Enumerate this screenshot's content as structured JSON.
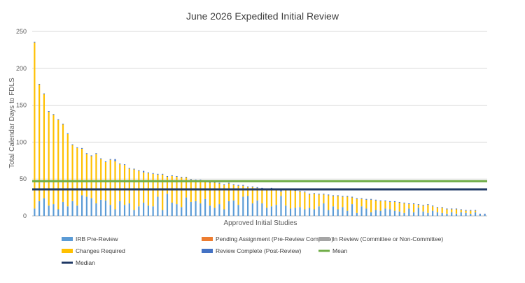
{
  "chart_data": {
    "type": "bar",
    "stacked": true,
    "title": "June 2026 Expedited Initial Review",
    "xlabel": "Approved Initial Studies",
    "ylabel": "Total Calendar Days to FDLS",
    "ylim": [
      0,
      250
    ],
    "yticks": [
      0,
      50,
      100,
      150,
      200,
      250
    ],
    "grid": true,
    "legend_position": "bottom",
    "colors": {
      "irb_pre_review": "#5B9BD5",
      "pending_assignment": "#ED7D31",
      "in_review": "#A5A5A5",
      "changes_required": "#FFC000",
      "review_complete": "#4472C4",
      "mean": "#70AD47",
      "median": "#1F3864"
    },
    "series": [
      {
        "name": "IRB Pre-Review",
        "key": "irb_pre_review",
        "values": [
          10,
          20,
          24,
          14,
          16,
          9,
          19,
          13,
          20,
          14,
          28,
          26,
          24,
          17,
          22,
          21,
          15,
          9,
          20,
          15,
          17,
          8,
          13,
          18,
          14,
          13,
          26,
          8,
          30,
          18,
          16,
          12,
          25,
          19,
          20,
          17,
          23,
          14,
          11,
          16,
          9,
          20,
          21,
          15,
          26,
          27,
          17,
          21,
          17,
          11,
          13,
          15,
          27,
          14,
          10,
          11,
          12,
          9,
          11,
          9,
          13,
          17,
          8,
          13,
          9,
          12,
          7,
          16,
          4,
          13,
          10,
          5,
          8,
          7,
          10,
          9,
          7,
          6,
          4,
          10,
          5,
          11,
          6,
          4,
          7,
          5,
          4,
          3,
          5,
          3,
          5,
          4,
          3,
          5,
          2,
          2
        ]
      },
      {
        "name": "Pending Assignment (Pre-Review Complete)",
        "key": "pending_assignment",
        "values": [
          0,
          0,
          0,
          0,
          0,
          0,
          0,
          0,
          0,
          0,
          0,
          0,
          0,
          0,
          0,
          0,
          0,
          0,
          0,
          0,
          0,
          0,
          0,
          0,
          0,
          0,
          0,
          0,
          0,
          0,
          0,
          0,
          0,
          0,
          0,
          0,
          0,
          0,
          0,
          0,
          0,
          0,
          0,
          0,
          0,
          0,
          0,
          0,
          0,
          0,
          0,
          0,
          0,
          0,
          0,
          0,
          0,
          0,
          0,
          0,
          0,
          0,
          0,
          0,
          0,
          0,
          0,
          0,
          0,
          0,
          0,
          0,
          0,
          0,
          0,
          0,
          0,
          0,
          0,
          0,
          0,
          0,
          0,
          0,
          0,
          0,
          0,
          0,
          0,
          0,
          0,
          0,
          0,
          0,
          0,
          0
        ]
      },
      {
        "name": "In Review (Committee or Non-Committee)",
        "key": "in_review",
        "values": [
          0,
          0,
          0,
          0,
          0,
          0,
          0,
          0,
          0,
          0,
          0,
          0,
          0,
          0,
          0,
          0,
          0,
          0,
          0,
          0,
          0,
          0,
          0,
          0,
          0,
          0,
          0,
          0,
          0,
          0,
          0,
          0,
          0,
          0,
          0,
          0,
          0,
          0,
          0,
          0,
          0,
          0,
          0,
          0,
          0,
          0,
          0,
          0,
          0,
          0,
          0,
          0,
          0,
          0,
          0,
          0,
          0,
          0,
          0,
          0,
          0,
          0,
          0,
          0,
          0,
          0,
          0,
          0,
          0,
          0,
          0,
          0,
          0,
          0,
          0,
          0,
          0,
          0,
          0,
          0,
          0,
          0,
          0,
          0,
          0,
          0,
          0,
          0,
          0,
          0,
          0,
          0,
          0,
          0,
          0,
          0
        ]
      },
      {
        "name": "Changes Required",
        "key": "changes_required",
        "values": [
          225,
          158,
          141,
          127,
          121,
          121,
          105,
          98,
          76,
          78,
          63,
          58,
          57,
          67,
          55,
          52,
          61,
          65,
          50,
          54,
          47,
          55,
          48,
          41,
          44,
          44,
          30,
          48,
          23,
          36,
          37,
          40,
          27,
          30,
          28,
          31,
          23,
          31,
          34,
          28,
          33,
          24,
          21,
          26,
          15,
          12,
          22,
          17,
          20,
          25,
          24,
          20,
          6,
          22,
          25,
          23,
          21,
          23,
          18,
          21,
          16,
          12,
          20,
          14,
          18,
          14,
          19,
          9,
          19,
          10,
          12,
          17,
          13,
          13,
          10,
          10,
          12,
          12,
          13,
          6,
          11,
          4,
          8,
          11,
          6,
          6,
          7,
          6,
          4,
          6,
          3,
          3,
          4,
          2,
          0,
          0
        ]
      },
      {
        "name": "Review Complete (Post-Review)",
        "key": "review_complete",
        "values": [
          1,
          1,
          1,
          1,
          1,
          1,
          1,
          1,
          1,
          1,
          1,
          1,
          1,
          1,
          1,
          1,
          1,
          3,
          1,
          1,
          1,
          1,
          1,
          2,
          1,
          1,
          1,
          1,
          1,
          1,
          1,
          1,
          1,
          1,
          1,
          1,
          1,
          1,
          1,
          1,
          1,
          1,
          1,
          1,
          1,
          1,
          1,
          1,
          1,
          1,
          1,
          1,
          2,
          1,
          1,
          1,
          1,
          1,
          1,
          1,
          1,
          1,
          1,
          1,
          1,
          1,
          1,
          1,
          1,
          1,
          1,
          1,
          1,
          1,
          1,
          1,
          1,
          1,
          1,
          1,
          1,
          1,
          1,
          1,
          1,
          1,
          1,
          1,
          1,
          1,
          1,
          1,
          1,
          1,
          1,
          1
        ]
      },
      {
        "name": "Mean",
        "key": "mean",
        "type": "line",
        "value": 47
      },
      {
        "name": "Median",
        "key": "median",
        "type": "line",
        "value": 36
      }
    ]
  }
}
